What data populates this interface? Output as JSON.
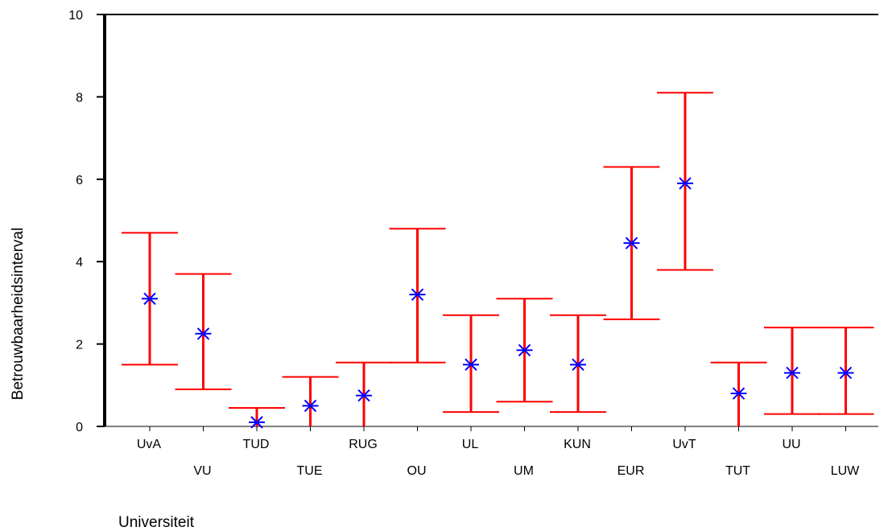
{
  "chart_data": {
    "type": "errorbar",
    "title": "",
    "xlabel": "Universiteit",
    "ylabel": "Betrouwbaarheidsinterval",
    "ylim": [
      0,
      10
    ],
    "yticks": [
      0,
      2,
      4,
      6,
      8,
      10
    ],
    "categories": [
      "UvA",
      "VU",
      "TUD",
      "TUE",
      "RUG",
      "OU",
      "UL",
      "UM",
      "KUN",
      "EUR",
      "UvT",
      "TUT",
      "UU",
      "LUW"
    ],
    "means": [
      3.1,
      2.25,
      0.1,
      0.5,
      0.75,
      3.2,
      1.5,
      1.85,
      1.5,
      4.45,
      5.9,
      0.8,
      1.3,
      1.3
    ],
    "lower": [
      1.5,
      0.9,
      0.0,
      0.0,
      0.0,
      1.55,
      0.35,
      0.6,
      0.35,
      2.6,
      3.8,
      0.0,
      0.3,
      0.3
    ],
    "upper": [
      4.7,
      3.7,
      0.45,
      1.2,
      1.55,
      4.8,
      2.7,
      3.1,
      2.7,
      6.3,
      8.1,
      1.55,
      2.4,
      2.4
    ],
    "colors": {
      "interval": "#ff0000",
      "mean": "#0000ff",
      "axis": "#000000"
    }
  }
}
